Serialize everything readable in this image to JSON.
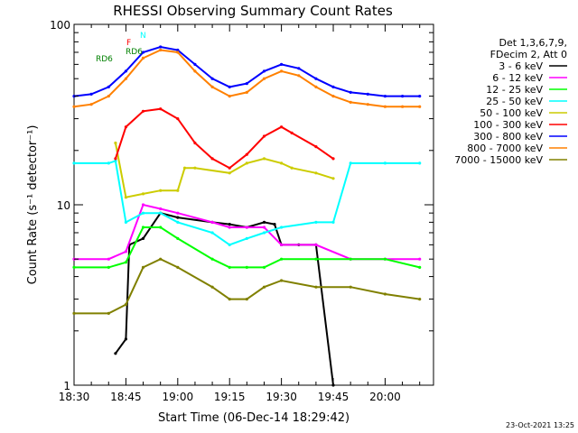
{
  "chart_data": {
    "type": "line",
    "title": "RHESSI Observing Summary Count Rates",
    "xlabel": "Start Time (06-Dec-14 18:29:42)",
    "ylabel": "Count Rate (s⁻¹ detector⁻¹)",
    "yscale": "log",
    "ylim": [
      1,
      100
    ],
    "xlim_minutes": [
      0,
      104
    ],
    "x_tick_labels": [
      "18:30",
      "18:45",
      "19:00",
      "19:15",
      "19:30",
      "19:45",
      "20:00"
    ],
    "x_tick_minutes": [
      0,
      15,
      30,
      45,
      60,
      75,
      90
    ],
    "y_tick_labels": [
      "1",
      "10",
      "100"
    ],
    "y_tick_values": [
      1,
      10,
      100
    ],
    "legend": {
      "placement": "right",
      "header": [
        "Det 1,3,6,7,9,",
        "FDecim 2, Att 0"
      ]
    },
    "flag_labels": [
      "N",
      "F",
      "RD6",
      "RD6"
    ],
    "footer_timestamp": "23-Oct-2021 13:25",
    "series": [
      {
        "name": "3 - 6 keV",
        "color": "#000000",
        "x": [
          12,
          15,
          16,
          20,
          25,
          30,
          40,
          45,
          50,
          55,
          58,
          60,
          65,
          70,
          75
        ],
        "values": [
          1.5,
          1.8,
          6.0,
          6.5,
          9.0,
          8.5,
          8.0,
          7.8,
          7.5,
          8.0,
          7.8,
          6.0,
          6.0,
          6.0,
          1.0
        ]
      },
      {
        "name": "6 - 12 keV",
        "color": "#ff00ff",
        "x": [
          0,
          10,
          15,
          20,
          25,
          30,
          40,
          45,
          50,
          55,
          60,
          70,
          80,
          90,
          100
        ],
        "values": [
          5.0,
          5.0,
          5.5,
          10.0,
          9.5,
          9.0,
          8.0,
          7.5,
          7.5,
          7.5,
          6.0,
          6.0,
          5.0,
          5.0,
          5.0
        ]
      },
      {
        "name": "12 - 25 keV",
        "color": "#00ff00",
        "x": [
          0,
          10,
          15,
          20,
          25,
          30,
          40,
          45,
          50,
          55,
          60,
          70,
          80,
          90,
          100
        ],
        "values": [
          4.5,
          4.5,
          4.8,
          7.5,
          7.5,
          6.5,
          5.0,
          4.5,
          4.5,
          4.5,
          5.0,
          5.0,
          5.0,
          5.0,
          4.5
        ]
      },
      {
        "name": "25 - 50 keV",
        "color": "#00ffff",
        "x": [
          0,
          10,
          12,
          15,
          20,
          25,
          30,
          40,
          45,
          50,
          55,
          60,
          70,
          75,
          80,
          90,
          100
        ],
        "values": [
          17.0,
          17.0,
          17.5,
          8.0,
          9.0,
          9.0,
          8.0,
          7.0,
          6.0,
          6.5,
          7.0,
          7.5,
          8.0,
          8.0,
          17.0,
          17.0,
          17.0
        ]
      },
      {
        "name": "50 - 100 keV",
        "color": "#cccc00",
        "x": [
          12,
          15,
          20,
          25,
          30,
          32,
          35,
          45,
          50,
          55,
          60,
          63,
          70,
          75
        ],
        "values": [
          22.0,
          11.0,
          11.5,
          12.0,
          12.0,
          16.0,
          16.0,
          15.0,
          17.0,
          18.0,
          17.0,
          16.0,
          15.0,
          14.0
        ]
      },
      {
        "name": "100 - 300 keV",
        "color": "#ff0000",
        "x": [
          12,
          15,
          20,
          25,
          30,
          35,
          40,
          45,
          50,
          55,
          60,
          63,
          70,
          75
        ],
        "values": [
          18.0,
          27.0,
          33.0,
          34.0,
          30.0,
          22.0,
          18.0,
          16.0,
          19.0,
          24.0,
          27.0,
          25.0,
          21.0,
          18.0
        ]
      },
      {
        "name": "300 - 800 keV",
        "color": "#0000ff",
        "x": [
          0,
          5,
          10,
          15,
          20,
          25,
          30,
          35,
          40,
          45,
          50,
          55,
          60,
          65,
          70,
          75,
          80,
          85,
          90,
          95,
          100
        ],
        "values": [
          40.0,
          41.0,
          45.0,
          55.0,
          70.0,
          75.0,
          72.0,
          60.0,
          50.0,
          45.0,
          47.0,
          55.0,
          60.0,
          57.0,
          50.0,
          45.0,
          42.0,
          41.0,
          40.0,
          40.0,
          40.0
        ]
      },
      {
        "name": "800 - 7000 keV",
        "color": "#ff8000",
        "x": [
          0,
          5,
          10,
          15,
          20,
          25,
          30,
          35,
          40,
          45,
          50,
          55,
          60,
          65,
          70,
          75,
          80,
          85,
          90,
          95,
          100
        ],
        "values": [
          35.0,
          36.0,
          40.0,
          50.0,
          65.0,
          72.0,
          70.0,
          55.0,
          45.0,
          40.0,
          42.0,
          50.0,
          55.0,
          52.0,
          45.0,
          40.0,
          37.0,
          36.0,
          35.0,
          35.0,
          35.0
        ]
      },
      {
        "name": "7000 - 15000 keV",
        "color": "#808000",
        "x": [
          0,
          10,
          15,
          20,
          25,
          30,
          40,
          45,
          50,
          55,
          60,
          70,
          80,
          90,
          100
        ],
        "values": [
          2.5,
          2.5,
          2.8,
          4.5,
          5.0,
          4.5,
          3.5,
          3.0,
          3.0,
          3.5,
          3.8,
          3.5,
          3.5,
          3.2,
          3.0
        ]
      }
    ]
  }
}
